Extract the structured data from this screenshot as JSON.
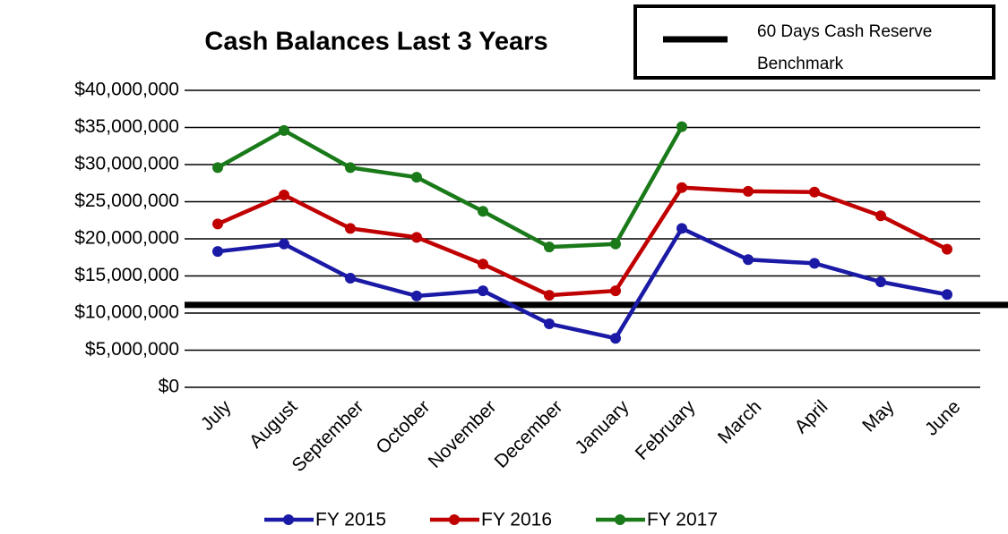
{
  "chart_data": {
    "type": "line",
    "title": "Cash Balances Last 3 Years",
    "categories": [
      "July",
      "August",
      "September",
      "October",
      "November",
      "December",
      "January",
      "February",
      "March",
      "April",
      "May",
      "June"
    ],
    "series": [
      {
        "name": "FY 2015",
        "color": "#1a1aa6",
        "values": [
          18300000,
          19300000,
          14700000,
          12300000,
          13000000,
          8550000,
          6600000,
          21400000,
          17200000,
          16700000,
          14200000,
          12500000
        ]
      },
      {
        "name": "FY 2016",
        "color": "#c00000",
        "values": [
          22000000,
          25900000,
          21400000,
          20200000,
          16600000,
          12400000,
          13000000,
          26900000,
          26400000,
          26300000,
          23100000,
          18600000
        ]
      },
      {
        "name": "FY 2017",
        "color": "#1a7a1a",
        "values": [
          29600000,
          34600000,
          29600000,
          28300000,
          23700000,
          18900000,
          19300000,
          35100000,
          null,
          null,
          null,
          null
        ]
      }
    ],
    "benchmark": {
      "name": "60 Days Cash Reserve Benchmark",
      "value": 11100000,
      "color": "#000000"
    },
    "ylim": [
      0,
      40000000
    ],
    "yticks": [
      {
        "value": 0,
        "label": "$0"
      },
      {
        "value": 5000000,
        "label": "$5,000,000"
      },
      {
        "value": 10000000,
        "label": "$10,000,000"
      },
      {
        "value": 15000000,
        "label": "$15,000,000"
      },
      {
        "value": 20000000,
        "label": "$20,000,000"
      },
      {
        "value": 25000000,
        "label": "$25,000,000"
      },
      {
        "value": 30000000,
        "label": "$30,000,000"
      },
      {
        "value": 35000000,
        "label": "$35,000,000"
      },
      {
        "value": 40000000,
        "label": "$40,000,000"
      }
    ],
    "grid": true,
    "legend": "bottom"
  }
}
